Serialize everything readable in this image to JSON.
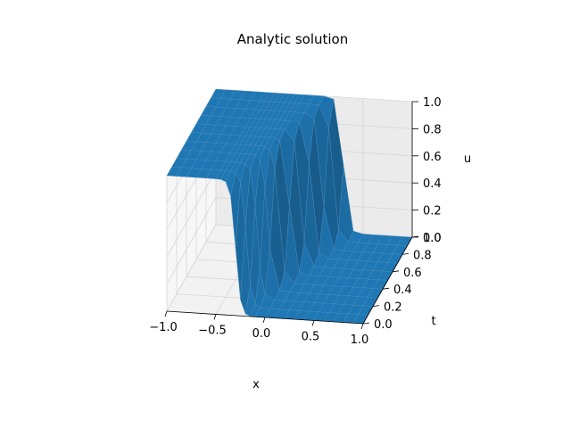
{
  "chart_data": {
    "type": "surface",
    "title": "Analytic solution",
    "xlabel": "x",
    "ylabel": "t",
    "zlabel": "u",
    "xlim": [
      -1.0,
      1.0
    ],
    "ylim": [
      0.0,
      1.0
    ],
    "zlim": [
      0.0,
      1.0
    ],
    "x_ticks": [
      "−1.0",
      "−0.5",
      "0.0",
      "0.5",
      "1.0"
    ],
    "y_ticks": [
      "0.0",
      "0.2",
      "0.4",
      "0.6",
      "0.8",
      "1.0"
    ],
    "z_ticks": [
      "0.0",
      "0.2",
      "0.4",
      "0.6",
      "0.8",
      "1.0"
    ],
    "surface": {
      "description_of_function": "u(x,t) = 0.5 * (1 - tanh((x - 0.6*t + 0.3) / 0.05))",
      "x_points": [
        -1.0,
        -0.9,
        -0.8,
        -0.7,
        -0.6,
        -0.5,
        -0.45,
        -0.4,
        -0.35,
        -0.3,
        -0.25,
        -0.2,
        -0.15,
        -0.1,
        0.0,
        0.1,
        0.2,
        0.3,
        0.4,
        0.5,
        0.6,
        0.7,
        0.8,
        0.9,
        1.0
      ],
      "t_points": [
        0.0,
        0.1,
        0.2,
        0.3,
        0.4,
        0.5,
        0.6,
        0.7,
        0.8,
        0.9,
        1.0
      ],
      "color": "#1f77b4",
      "edge_color": "#4a8fc0"
    },
    "grid": true
  }
}
